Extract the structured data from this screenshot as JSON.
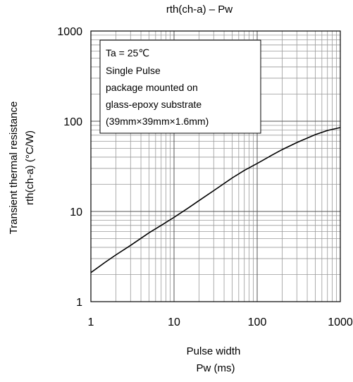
{
  "chart_data": {
    "type": "line",
    "title": "rth(ch-a) – Pw",
    "xlabel_line1": "Pulse width",
    "xlabel_line2": "Pw (ms)",
    "ylabel_line1": "Transient thermal resistance",
    "ylabel_line2": "rth(ch-a) (°C/W)",
    "x_scale": "log",
    "y_scale": "log",
    "xlim": [
      1,
      1000
    ],
    "ylim": [
      1,
      1000
    ],
    "grid": true,
    "x_tick_labels": [
      "1",
      "10",
      "100",
      "1000"
    ],
    "y_tick_labels": [
      "1",
      "10",
      "100",
      "1000"
    ],
    "annotation_lines": [
      "Ta = 25℃",
      "Single Pulse",
      "package mounted on",
      "glass-epoxy substrate",
      "(39mm×39mm×1.6mm)"
    ],
    "series": [
      {
        "x": [
          1,
          1.5,
          2,
          3,
          5,
          7,
          10,
          15,
          20,
          30,
          50,
          70,
          100,
          150,
          200,
          300,
          500,
          700,
          1000
        ],
        "y": [
          2.1,
          2.75,
          3.3,
          4.2,
          5.8,
          7.0,
          8.6,
          11.0,
          13.2,
          17.0,
          23.5,
          28.5,
          34.0,
          42.0,
          48.5,
          58.0,
          71.0,
          79.0,
          85.0
        ]
      }
    ]
  },
  "colors": {
    "line": "#000000",
    "grid": "#9a9a9a",
    "axis": "#000000",
    "background": "#ffffff"
  }
}
